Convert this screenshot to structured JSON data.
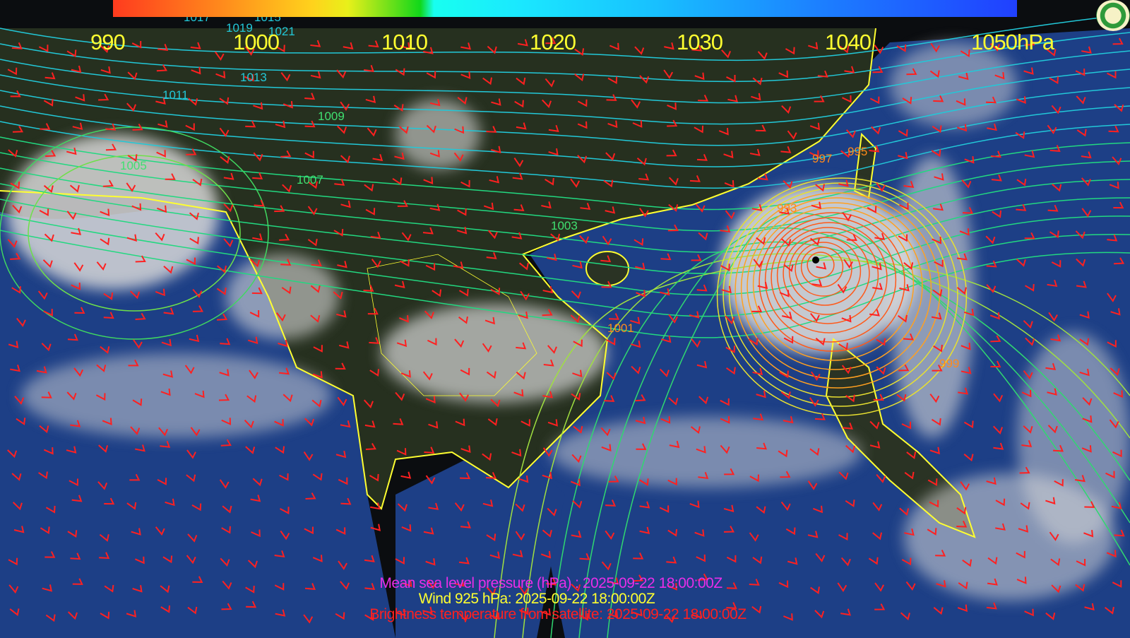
{
  "colorbar": {
    "ticks": [
      "990",
      "1000",
      "1010",
      "1020",
      "1030",
      "1040",
      "1050"
    ],
    "unit": "hPa",
    "colors": [
      "#ff3b1e",
      "#ffd21c",
      "#10d81a",
      "#18fff0",
      "#18c0ff",
      "#2040ff"
    ]
  },
  "captions": {
    "pressure": "Mean sea level pressure (hPa) : 2025-09-22 18:00:00Z",
    "wind": "Wind 925 hPa: 2025-09-22 18:00:00Z",
    "satellite": "Brightness temperature from satellite: 2025-09-22 18:00:00Z"
  },
  "contour_labels": [
    "1011",
    "1013",
    "1015",
    "1017",
    "1019",
    "1021",
    "1009",
    "1007",
    "1005",
    "1003",
    "1001",
    "999",
    "997",
    "995",
    "993"
  ],
  "colors": {
    "coastline": "#ffff30",
    "wind_barb": "#ff2020",
    "ocean": "#1d3f86",
    "typhoon_isobar": "#ff7a1a"
  }
}
